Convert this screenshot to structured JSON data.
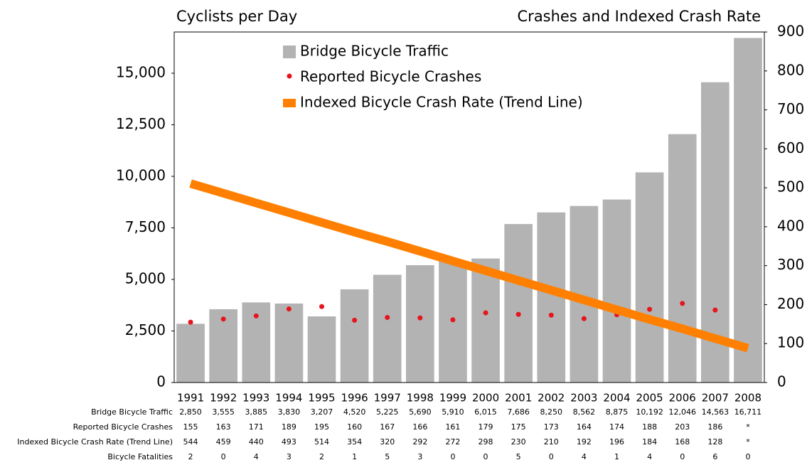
{
  "chart_data": {
    "type": "bar",
    "title": "Cyclists per Day",
    "y2_title": "Crashes and Indexed Crash Rate",
    "categories": [
      "1991",
      "1992",
      "1993",
      "1994",
      "1995",
      "1996",
      "1997",
      "1998",
      "1999",
      "2000",
      "2001",
      "2002",
      "2003",
      "2004",
      "2005",
      "2006",
      "2007",
      "2008"
    ],
    "series": [
      {
        "name": "Bridge Bicycle Traffic",
        "type": "bar",
        "color": "#b3b3b3",
        "values": [
          2850,
          3555,
          3885,
          3830,
          3207,
          4520,
          5225,
          5690,
          5910,
          6015,
          7686,
          8250,
          8562,
          8875,
          10192,
          12046,
          14563,
          16711
        ]
      },
      {
        "name": "Reported Bicycle Crashes",
        "type": "scatter",
        "axis": "y2",
        "color": "#e8141c",
        "values": [
          155,
          163,
          171,
          189,
          195,
          160,
          167,
          166,
          161,
          179,
          175,
          173,
          164,
          174,
          188,
          203,
          186,
          null
        ]
      },
      {
        "name": "Indexed Bicycle Crash Rate (Trend Line)",
        "type": "line",
        "axis": "y2",
        "color": "#ff8000",
        "values": [
          511,
          486,
          461,
          436,
          411,
          386,
          362,
          337,
          312,
          287,
          262,
          237,
          212,
          187,
          162,
          138,
          113,
          88
        ]
      }
    ],
    "ylim": [
      0,
      17000
    ],
    "yticks": [
      0,
      {
        "value": 2500,
        "label": "2,500"
      },
      {
        "value": 5000,
        "label": "5,000"
      },
      {
        "value": 7500,
        "label": "7,500"
      },
      {
        "value": 10000,
        "label": "10,000"
      },
      {
        "value": 12500,
        "label": "12,500"
      },
      {
        "value": 15000,
        "label": "15,000"
      }
    ],
    "y2lim": [
      0,
      900
    ],
    "y2ticks": [
      0,
      100,
      200,
      300,
      400,
      500,
      600,
      700,
      800,
      900
    ],
    "legend": "top-left",
    "table": {
      "rows": [
        {
          "label": "Bridge Bicycle Traffic",
          "cells": [
            "2,850",
            "3,555",
            "3,885",
            "3,830",
            "3,207",
            "4,520",
            "5,225",
            "5,690",
            "5,910",
            "6,015",
            "7,686",
            "8,250",
            "8,562",
            "8,875",
            "10,192",
            "12,046",
            "14,563",
            "16,711"
          ]
        },
        {
          "label": "Reported Bicycle Crashes",
          "cells": [
            "155",
            "163",
            "171",
            "189",
            "195",
            "160",
            "167",
            "166",
            "161",
            "179",
            "175",
            "173",
            "164",
            "174",
            "188",
            "203",
            "186",
            "*"
          ]
        },
        {
          "label": "Indexed Bicycle Crash Rate (Trend Line)",
          "cells": [
            "544",
            "459",
            "440",
            "493",
            "514",
            "354",
            "320",
            "292",
            "272",
            "298",
            "230",
            "210",
            "192",
            "196",
            "184",
            "168",
            "128",
            "*"
          ]
        },
        {
          "label": "Bicycle Fatalities",
          "cells": [
            "2",
            "0",
            "4",
            "3",
            "2",
            "1",
            "5",
            "3",
            "0",
            "0",
            "5",
            "0",
            "4",
            "1",
            "4",
            "0",
            "6",
            "0"
          ]
        }
      ]
    }
  }
}
